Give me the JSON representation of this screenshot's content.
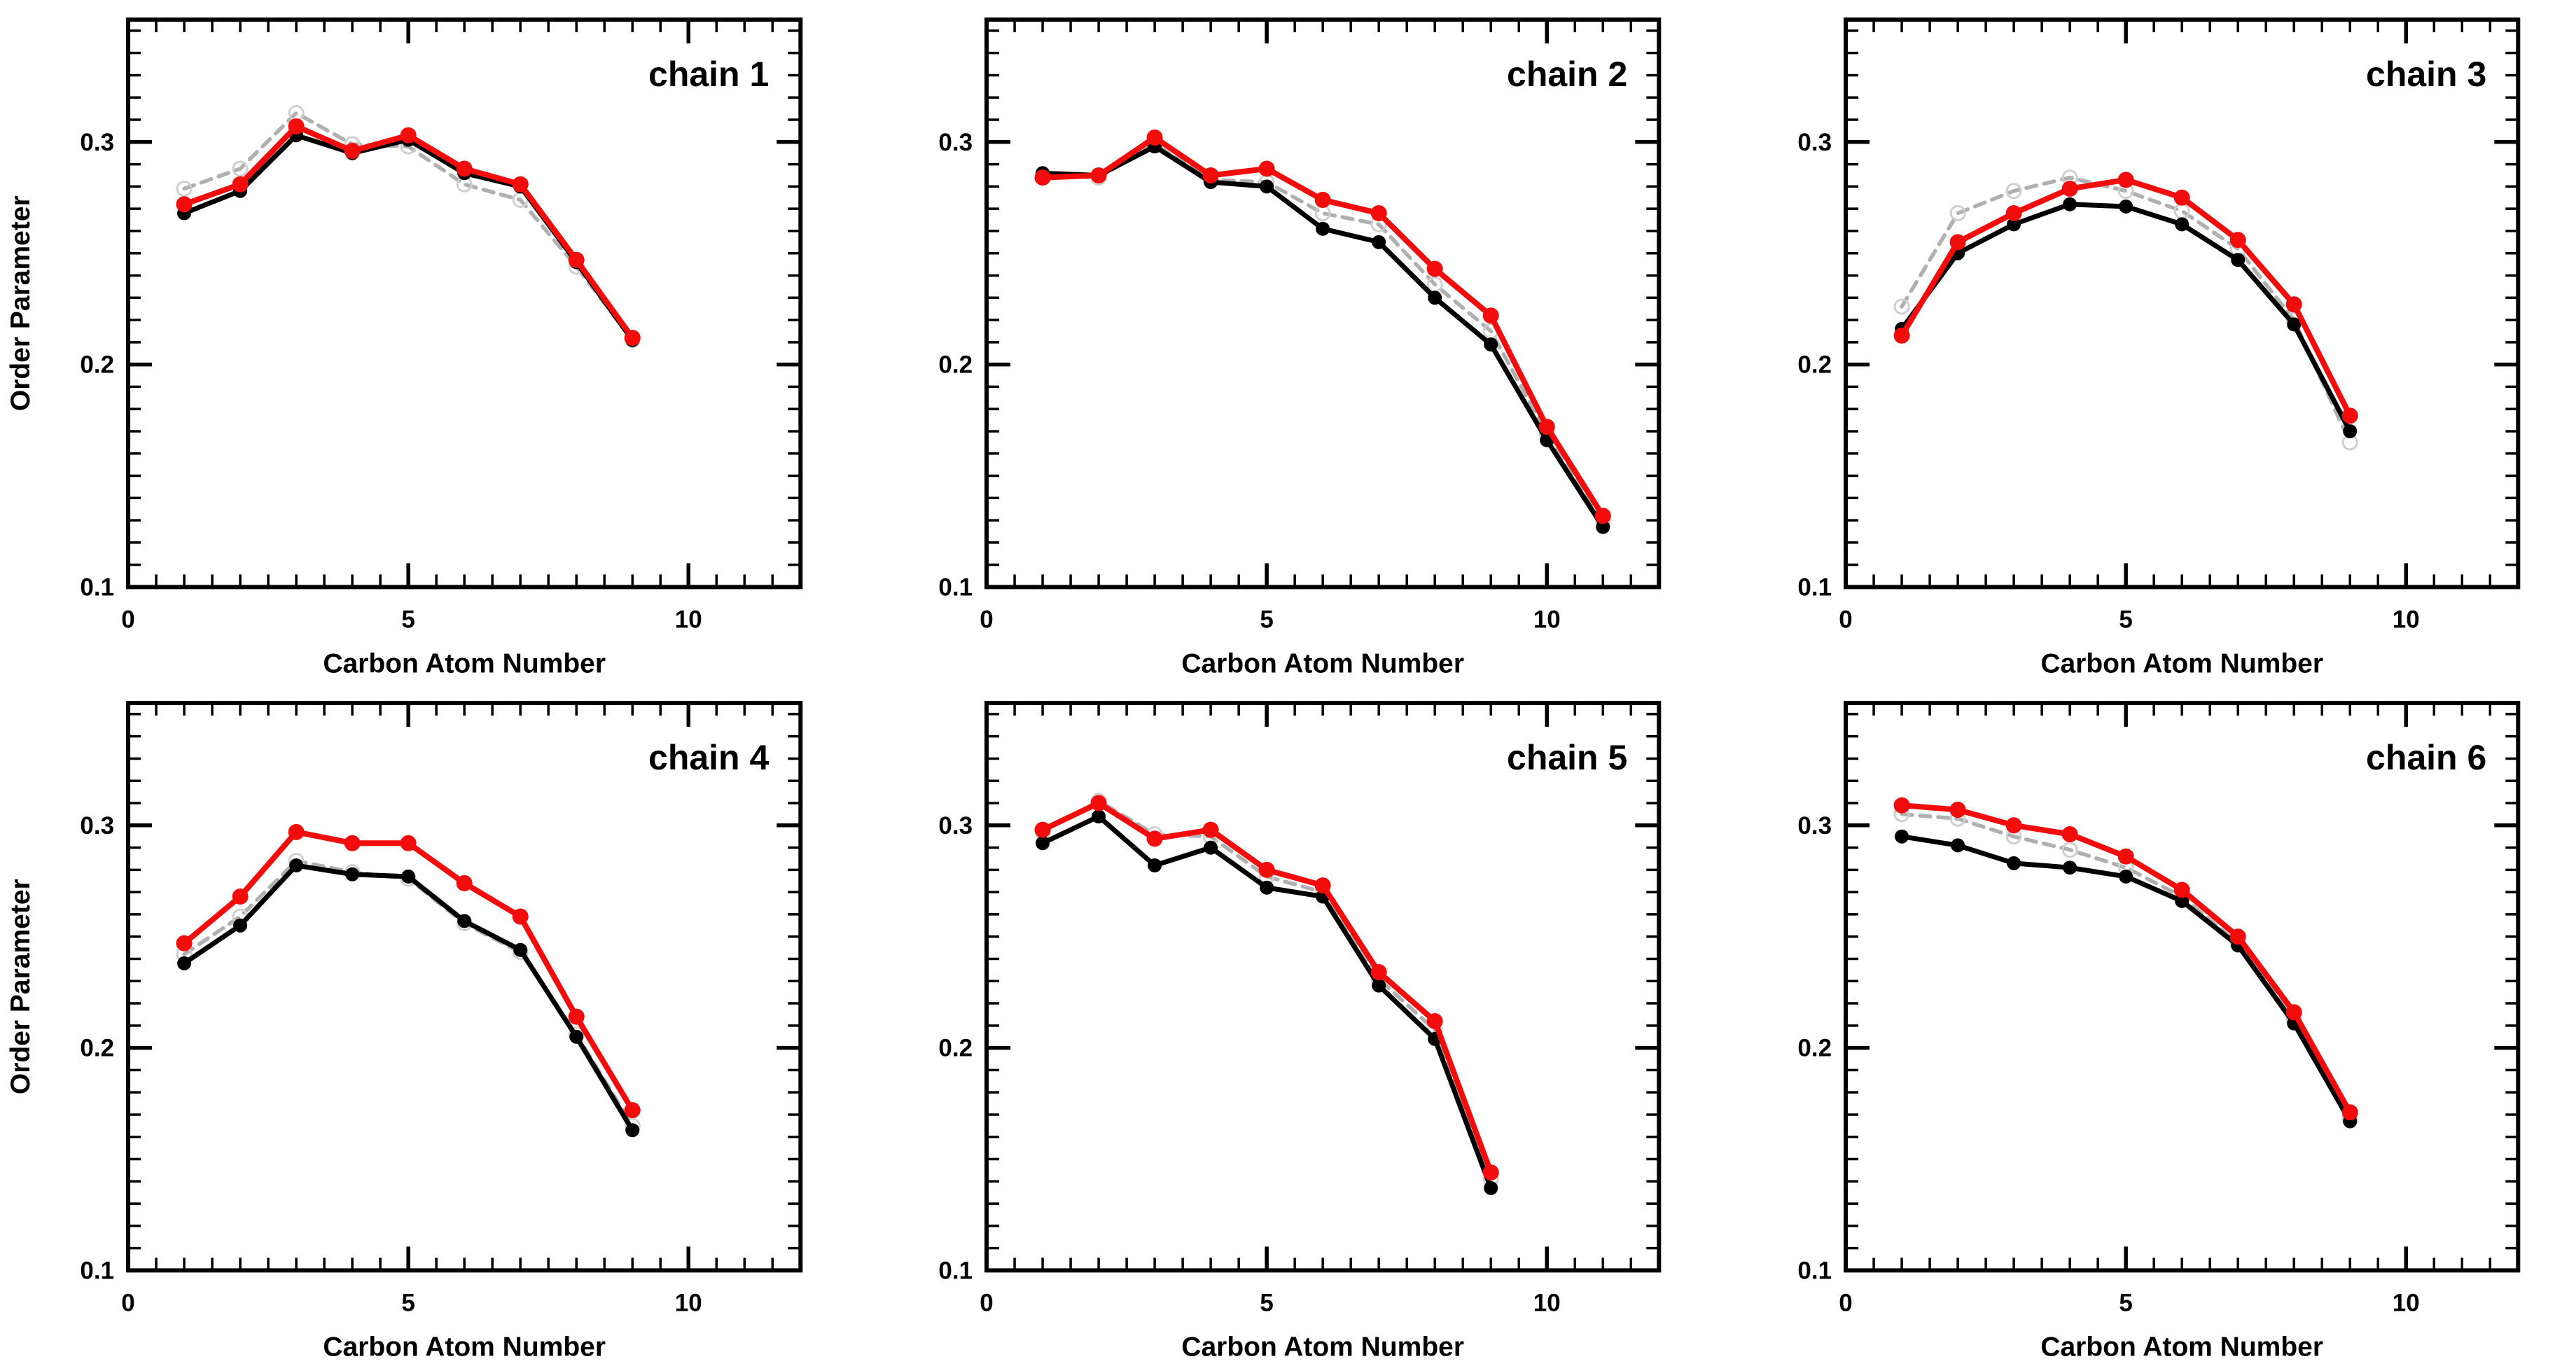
{
  "figure": {
    "ylabel": "Order Parameter",
    "xlabel": "Carbon Atom Number",
    "background": "#ffffff",
    "colors": {
      "axis": "#000000",
      "red_series": "#f20c0c",
      "black_series": "#000000",
      "gray_series": "#b0b0b0",
      "gray_marker_ring": "#cfcfcf"
    }
  },
  "chart_data": [
    {
      "type": "line",
      "title": "chain 1",
      "xlabel": "Carbon Atom Number",
      "ylabel": "Order Parameter",
      "xlim": [
        0,
        12
      ],
      "ylim": [
        0.1,
        0.355
      ],
      "x_tick_values": [
        0,
        5,
        10
      ],
      "x_tick_labels": [
        "0",
        "5",
        "10"
      ],
      "x_minor_step": 0.5,
      "y_tick_values": [
        0.1,
        0.2,
        0.3
      ],
      "y_tick_labels": [
        "0.1",
        "0.2",
        "0.3"
      ],
      "y_minor_step": 0.01,
      "grid": false,
      "legend": "none",
      "x": [
        1,
        2,
        3,
        4,
        5,
        6,
        7,
        8,
        9
      ],
      "series": [
        {
          "name": "gray-dashed",
          "style": "dashed",
          "values": [
            0.279,
            0.288,
            0.313,
            0.299,
            0.298,
            0.281,
            0.274,
            0.244,
            0.211
          ]
        },
        {
          "name": "black-solid",
          "style": "solid",
          "values": [
            0.268,
            0.278,
            0.303,
            0.295,
            0.301,
            0.286,
            0.28,
            0.246,
            0.211
          ]
        },
        {
          "name": "red-solid",
          "style": "solid",
          "values": [
            0.272,
            0.281,
            0.307,
            0.296,
            0.303,
            0.288,
            0.281,
            0.247,
            0.212
          ]
        }
      ]
    },
    {
      "type": "line",
      "title": "chain 2",
      "xlabel": "Carbon Atom Number",
      "ylabel": "Order Parameter",
      "xlim": [
        0,
        12
      ],
      "ylim": [
        0.1,
        0.355
      ],
      "x_tick_values": [
        0,
        5,
        10
      ],
      "x_tick_labels": [
        "0",
        "5",
        "10"
      ],
      "x_minor_step": 0.5,
      "y_tick_values": [
        0.1,
        0.2,
        0.3
      ],
      "y_tick_labels": [
        "0.1",
        "0.2",
        "0.3"
      ],
      "y_minor_step": 0.01,
      "grid": false,
      "legend": "none",
      "x": [
        1,
        2,
        3,
        4,
        5,
        6,
        7,
        8,
        9,
        10,
        11
      ],
      "series": [
        {
          "name": "gray-dashed",
          "style": "dashed",
          "values": [
            0.285,
            0.284,
            0.299,
            0.283,
            0.282,
            0.268,
            0.263,
            0.236,
            0.215,
            0.169,
            0.13
          ]
        },
        {
          "name": "black-solid",
          "style": "solid",
          "values": [
            0.286,
            0.285,
            0.298,
            0.282,
            0.28,
            0.261,
            0.255,
            0.23,
            0.209,
            0.166,
            0.127
          ]
        },
        {
          "name": "red-solid",
          "style": "solid",
          "values": [
            0.284,
            0.285,
            0.302,
            0.285,
            0.288,
            0.274,
            0.268,
            0.243,
            0.222,
            0.172,
            0.132
          ]
        }
      ]
    },
    {
      "type": "line",
      "title": "chain 3",
      "xlabel": "Carbon Atom Number",
      "ylabel": "Order Parameter",
      "xlim": [
        0,
        12
      ],
      "ylim": [
        0.1,
        0.355
      ],
      "x_tick_values": [
        0,
        5,
        10
      ],
      "x_tick_labels": [
        "0",
        "5",
        "10"
      ],
      "x_minor_step": 0.5,
      "y_tick_values": [
        0.1,
        0.2,
        0.3
      ],
      "y_tick_labels": [
        "0.1",
        "0.2",
        "0.3"
      ],
      "y_minor_step": 0.01,
      "grid": false,
      "legend": "none",
      "x": [
        1,
        2,
        3,
        4,
        5,
        6,
        7,
        8,
        9
      ],
      "series": [
        {
          "name": "gray-dashed",
          "style": "dashed",
          "values": [
            0.226,
            0.268,
            0.278,
            0.284,
            0.278,
            0.269,
            0.252,
            0.22,
            0.165
          ]
        },
        {
          "name": "black-solid",
          "style": "solid",
          "values": [
            0.216,
            0.25,
            0.263,
            0.272,
            0.271,
            0.263,
            0.247,
            0.218,
            0.17
          ]
        },
        {
          "name": "red-solid",
          "style": "solid",
          "values": [
            0.213,
            0.255,
            0.268,
            0.279,
            0.283,
            0.275,
            0.256,
            0.227,
            0.177
          ]
        }
      ]
    },
    {
      "type": "line",
      "title": "chain 4",
      "xlabel": "Carbon Atom Number",
      "ylabel": "Order Parameter",
      "xlim": [
        0,
        12
      ],
      "ylim": [
        0.1,
        0.355
      ],
      "x_tick_values": [
        0,
        5,
        10
      ],
      "x_tick_labels": [
        "0",
        "5",
        "10"
      ],
      "x_minor_step": 0.5,
      "y_tick_values": [
        0.1,
        0.2,
        0.3
      ],
      "y_tick_labels": [
        "0.1",
        "0.2",
        "0.3"
      ],
      "y_minor_step": 0.01,
      "grid": false,
      "legend": "none",
      "x": [
        1,
        2,
        3,
        4,
        5,
        6,
        7,
        8,
        9
      ],
      "series": [
        {
          "name": "gray-dashed",
          "style": "dashed",
          "values": [
            0.242,
            0.259,
            0.284,
            0.279,
            0.276,
            0.256,
            0.243,
            0.206,
            0.165
          ]
        },
        {
          "name": "black-solid",
          "style": "solid",
          "values": [
            0.238,
            0.255,
            0.282,
            0.278,
            0.277,
            0.257,
            0.244,
            0.205,
            0.163
          ]
        },
        {
          "name": "red-solid",
          "style": "solid",
          "values": [
            0.247,
            0.268,
            0.297,
            0.292,
            0.292,
            0.274,
            0.259,
            0.214,
            0.172
          ]
        }
      ]
    },
    {
      "type": "line",
      "title": "chain 5",
      "xlabel": "Carbon Atom Number",
      "ylabel": "Order Parameter",
      "xlim": [
        0,
        12
      ],
      "ylim": [
        0.1,
        0.355
      ],
      "x_tick_values": [
        0,
        5,
        10
      ],
      "x_tick_labels": [
        "0",
        "5",
        "10"
      ],
      "x_minor_step": 0.5,
      "y_tick_values": [
        0.1,
        0.2,
        0.3
      ],
      "y_tick_labels": [
        "0.1",
        "0.2",
        "0.3"
      ],
      "y_minor_step": 0.01,
      "grid": false,
      "legend": "none",
      "x": [
        1,
        2,
        3,
        4,
        5,
        6,
        7,
        8,
        9
      ],
      "series": [
        {
          "name": "gray-dashed",
          "style": "dashed",
          "values": [
            0.297,
            0.311,
            0.296,
            0.295,
            0.277,
            0.27,
            0.231,
            0.208,
            0.141
          ]
        },
        {
          "name": "black-solid",
          "style": "solid",
          "values": [
            0.292,
            0.304,
            0.282,
            0.29,
            0.272,
            0.268,
            0.228,
            0.204,
            0.137
          ]
        },
        {
          "name": "red-solid",
          "style": "solid",
          "values": [
            0.298,
            0.31,
            0.294,
            0.298,
            0.28,
            0.273,
            0.234,
            0.212,
            0.144
          ]
        }
      ]
    },
    {
      "type": "line",
      "title": "chain 6",
      "xlabel": "Carbon Atom Number",
      "ylabel": "Order Parameter",
      "xlim": [
        0,
        12
      ],
      "ylim": [
        0.1,
        0.355
      ],
      "x_tick_values": [
        0,
        5,
        10
      ],
      "x_tick_labels": [
        "0",
        "5",
        "10"
      ],
      "x_minor_step": 0.5,
      "y_tick_values": [
        0.1,
        0.2,
        0.3
      ],
      "y_tick_labels": [
        "0.1",
        "0.2",
        "0.3"
      ],
      "y_minor_step": 0.01,
      "grid": false,
      "legend": "none",
      "x": [
        1,
        2,
        3,
        4,
        5,
        6,
        7,
        8,
        9
      ],
      "series": [
        {
          "name": "gray-dashed",
          "style": "dashed",
          "values": [
            0.305,
            0.303,
            0.295,
            0.289,
            0.281,
            0.268,
            0.247,
            0.213,
            0.168
          ]
        },
        {
          "name": "black-solid",
          "style": "solid",
          "values": [
            0.295,
            0.291,
            0.283,
            0.281,
            0.277,
            0.266,
            0.246,
            0.211,
            0.167
          ]
        },
        {
          "name": "red-solid",
          "style": "solid",
          "values": [
            0.309,
            0.307,
            0.3,
            0.296,
            0.286,
            0.271,
            0.25,
            0.216,
            0.171
          ]
        }
      ]
    }
  ]
}
